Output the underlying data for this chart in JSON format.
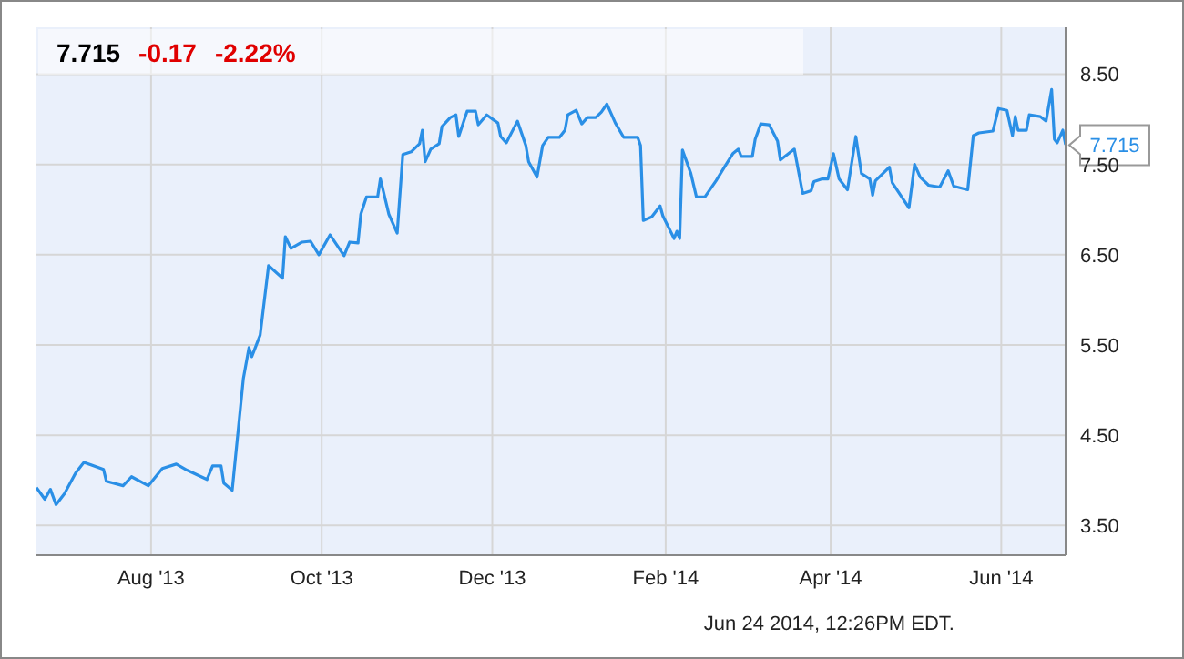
{
  "chart_data": {
    "type": "line",
    "title": "7.715",
    "annotations": [
      "-0.17",
      "-2.22%",
      "Jun 24 2014, 12:26PM EDT.",
      {
        "text": "7.715",
        "x": "2014-06-24",
        "y": 7.715
      }
    ],
    "x": [
      "2013-06-21",
      "2013-06-24",
      "2013-06-26",
      "2013-06-28",
      "2013-07-01",
      "2013-07-05",
      "2013-07-08",
      "2013-07-15",
      "2013-07-16",
      "2013-07-22",
      "2013-07-25",
      "2013-07-31",
      "2013-08-05",
      "2013-08-10",
      "2013-08-14",
      "2013-08-21",
      "2013-08-23",
      "2013-08-26",
      "2013-08-27",
      "2013-08-30",
      "2013-09-03",
      "2013-09-05",
      "2013-09-06",
      "2013-09-09",
      "2013-09-12",
      "2013-09-17",
      "2013-09-18",
      "2013-09-20",
      "2013-09-24",
      "2013-09-27",
      "2013-09-30",
      "2013-10-04",
      "2013-10-09",
      "2013-10-11",
      "2013-10-14",
      "2013-10-15",
      "2013-10-17",
      "2013-10-21",
      "2013-10-22",
      "2013-10-25",
      "2013-10-28",
      "2013-10-30",
      "2013-11-02",
      "2013-11-05",
      "2013-11-06",
      "2013-11-07",
      "2013-11-09",
      "2013-11-12",
      "2013-11-13",
      "2013-11-16",
      "2013-11-18",
      "2013-11-19",
      "2013-11-22",
      "2013-11-25",
      "2013-11-26",
      "2013-11-29",
      "2013-12-03",
      "2013-12-04",
      "2013-12-06",
      "2013-12-10",
      "2013-12-13",
      "2013-12-14",
      "2013-12-17",
      "2013-12-19",
      "2013-12-21",
      "2013-12-25",
      "2013-12-27",
      "2013-12-28",
      "2013-12-31",
      "2014-01-02",
      "2014-01-04",
      "2014-01-07",
      "2014-01-09",
      "2014-01-11",
      "2014-01-14",
      "2014-01-17",
      "2014-01-22",
      "2014-01-23",
      "2014-01-24",
      "2014-01-27",
      "2014-01-30",
      "2014-01-31",
      "2014-02-04",
      "2014-02-05",
      "2014-02-06",
      "2014-02-07",
      "2014-02-10",
      "2014-02-12",
      "2014-02-15",
      "2014-02-19",
      "2014-02-22",
      "2014-02-25",
      "2014-02-27",
      "2014-02-28",
      "2014-03-04",
      "2014-03-05",
      "2014-03-07",
      "2014-03-10",
      "2014-03-13",
      "2014-03-14",
      "2014-03-19",
      "2014-03-22",
      "2014-03-25",
      "2014-03-26",
      "2014-03-29",
      "2014-03-31",
      "2014-04-02",
      "2014-04-04",
      "2014-04-07",
      "2014-04-10",
      "2014-04-12",
      "2014-04-15",
      "2014-04-16",
      "2014-04-17",
      "2014-04-22",
      "2014-04-23",
      "2014-04-29",
      "2014-05-01",
      "2014-05-03",
      "2014-05-06",
      "2014-05-10",
      "2014-05-13",
      "2014-05-15",
      "2014-05-20",
      "2014-05-22",
      "2014-05-24",
      "2014-05-29",
      "2014-05-31",
      "2014-06-03",
      "2014-06-05",
      "2014-06-06",
      "2014-06-07",
      "2014-06-10",
      "2014-06-11",
      "2014-06-15",
      "2014-06-17",
      "2014-06-19",
      "2014-06-20",
      "2014-06-21",
      "2014-06-23",
      "2014-06-24"
    ],
    "series": [
      {
        "color": "#2a8fe6",
        "values": [
          3.92,
          3.79,
          3.9,
          3.73,
          3.85,
          4.08,
          4.2,
          4.12,
          3.99,
          3.94,
          4.04,
          3.94,
          4.13,
          4.18,
          4.11,
          4.01,
          4.16,
          4.16,
          3.97,
          3.89,
          5.13,
          5.47,
          5.37,
          5.61,
          6.38,
          6.24,
          6.7,
          6.57,
          6.64,
          6.65,
          6.5,
          6.72,
          6.49,
          6.64,
          6.63,
          6.95,
          7.14,
          7.14,
          7.34,
          6.95,
          6.74,
          7.61,
          7.64,
          7.73,
          7.88,
          7.53,
          7.67,
          7.73,
          7.92,
          8.02,
          8.05,
          7.81,
          8.09,
          8.09,
          7.94,
          8.05,
          7.96,
          7.81,
          7.74,
          7.98,
          7.71,
          7.53,
          7.36,
          7.71,
          7.8,
          7.8,
          7.88,
          8.05,
          8.1,
          7.95,
          8.02,
          8.02,
          8.08,
          8.17,
          7.96,
          7.8,
          7.8,
          7.71,
          6.88,
          6.92,
          7.04,
          6.93,
          6.68,
          6.76,
          6.68,
          7.66,
          7.4,
          7.14,
          7.14,
          7.32,
          7.47,
          7.62,
          7.67,
          7.59,
          7.59,
          7.78,
          7.95,
          7.94,
          7.76,
          7.55,
          7.67,
          7.18,
          7.21,
          7.31,
          7.34,
          7.34,
          7.62,
          7.34,
          7.22,
          7.81,
          7.4,
          7.34,
          7.16,
          7.32,
          7.47,
          7.3,
          7.02,
          7.5,
          7.36,
          7.27,
          7.25,
          7.43,
          7.26,
          7.22,
          7.82,
          7.85,
          7.87,
          8.12,
          8.1,
          7.82,
          8.03,
          7.88,
          7.88,
          8.05,
          8.03,
          7.98,
          8.33,
          7.78,
          7.74,
          7.88,
          7.72
        ]
      }
    ],
    "xlim": [
      "2013-06-21",
      "2014-06-24"
    ],
    "xticks": [
      {
        "value": "2013-08-01",
        "label": "Aug '13"
      },
      {
        "value": "2013-10-01",
        "label": "Oct '13"
      },
      {
        "value": "2013-12-01",
        "label": "Dec '13"
      },
      {
        "value": "2014-02-01",
        "label": "Feb '14"
      },
      {
        "value": "2014-04-01",
        "label": "Apr '14"
      },
      {
        "value": "2014-06-01",
        "label": "Jun '14"
      }
    ],
    "ylim": [
      3.17,
      9.02
    ],
    "yticks": [
      {
        "value": 3.5,
        "label": "3.50"
      },
      {
        "value": 4.5,
        "label": "4.50"
      },
      {
        "value": 5.5,
        "label": "5.50"
      },
      {
        "value": 6.5,
        "label": "6.50"
      },
      {
        "value": 7.5,
        "label": "7.50"
      },
      {
        "value": 8.5,
        "label": "8.50"
      }
    ],
    "grid": true,
    "legend": false,
    "marker": "none",
    "line_style": "solid"
  }
}
